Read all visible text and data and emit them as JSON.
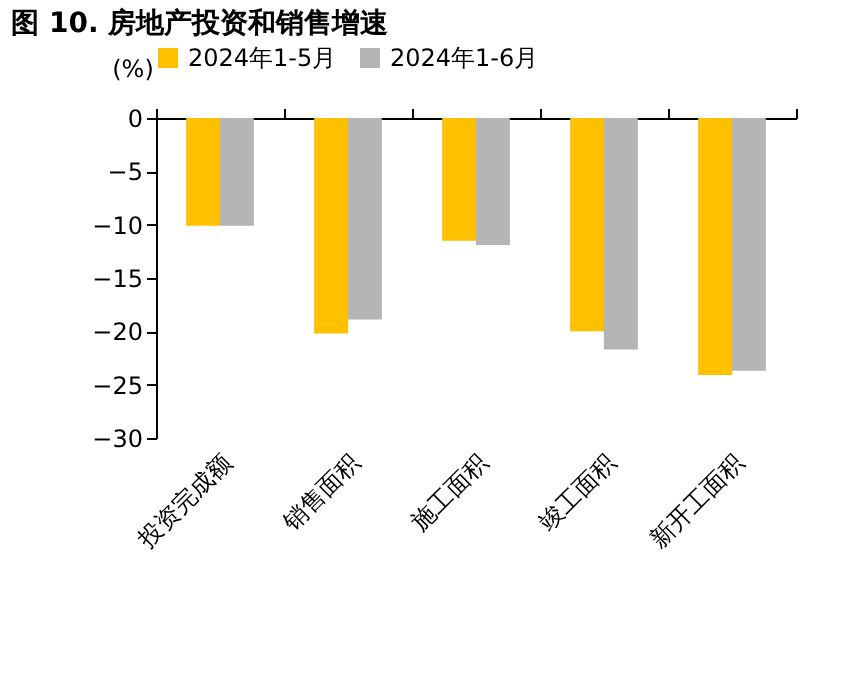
{
  "chart_data": {
    "type": "bar",
    "title": "图 10. 房地产投资和销售增速",
    "ylabel": "(%)",
    "categories": [
      "投资完成额",
      "销售面积",
      "施工面积",
      "竣工面积",
      "新开工面积"
    ],
    "series": [
      {
        "name": "2024年1-5月",
        "color": "#ffc000",
        "values": [
          -10.1,
          -20.2,
          -11.5,
          -20.0,
          -24.1
        ]
      },
      {
        "name": "2024年1-6月",
        "color": "#b4b4b4",
        "values": [
          -10.1,
          -18.9,
          -11.9,
          -21.7,
          -23.7
        ]
      }
    ],
    "ylim": [
      -30,
      0
    ],
    "yticks": [
      -30,
      -25,
      -20,
      -15,
      -10,
      -5,
      0
    ],
    "grid": false,
    "legend": "top"
  }
}
